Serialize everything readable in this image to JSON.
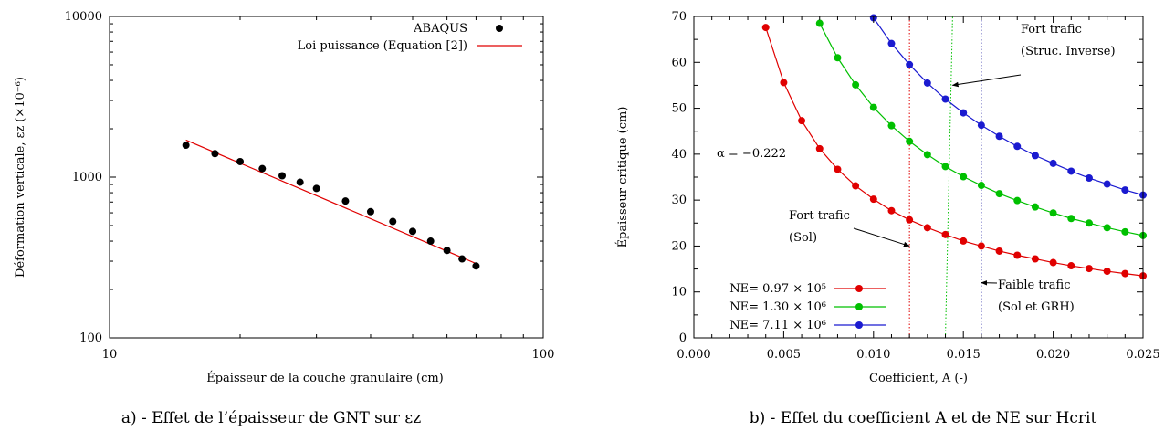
{
  "chart_data": [
    {
      "id": "a",
      "type": "scatter",
      "caption": "a) - Effet de l’épaisseur de GNT sur εz",
      "xlabel": "Épaisseur de la couche granulaire (cm)",
      "ylabel": "Déformation verticale, εz (×10⁻⁶)",
      "xscale": "log",
      "yscale": "log",
      "xlim": [
        10,
        100
      ],
      "ylim": [
        100,
        10000
      ],
      "xticks": [
        "10",
        "100"
      ],
      "yticks": [
        "100",
        "1000",
        "10000"
      ],
      "grid": false,
      "legend_position": "top-right",
      "series": [
        {
          "name": "ABAQUS",
          "kind": "points",
          "color": "#000000",
          "x": [
            15,
            17.5,
            20,
            22.5,
            25,
            27.5,
            30,
            35,
            40,
            45,
            50,
            55,
            60,
            65,
            70
          ],
          "y": [
            1580,
            1400,
            1250,
            1130,
            1020,
            930,
            850,
            710,
            610,
            530,
            460,
            400,
            350,
            310,
            280
          ]
        },
        {
          "name": "Loi puissance (Equation [2])",
          "kind": "line",
          "color": "#e00000",
          "x": [
            15,
            70
          ],
          "y": [
            1700,
            290
          ]
        }
      ]
    },
    {
      "id": "b",
      "type": "line",
      "caption": "b) - Effet du coefficient A et de NE sur Hcrit",
      "xlabel": "Coefficient, A (-)",
      "ylabel": "Épaisseur critique (cm)",
      "xlim": [
        0.0,
        0.025
      ],
      "ylim": [
        0,
        70
      ],
      "xticks": [
        "0.000",
        "0.005",
        "0.010",
        "0.015",
        "0.020",
        "0.025"
      ],
      "yticks": [
        "0",
        "10",
        "20",
        "30",
        "40",
        "50",
        "60",
        "70"
      ],
      "grid": false,
      "legend_position": "bottom-left",
      "annotation_alpha": "α = −0.222",
      "annotations": [
        {
          "lines": [
            "Fort trafic",
            "(Struc. Inverse)"
          ],
          "arrow_to": [
            0.0144,
            55
          ]
        },
        {
          "lines": [
            "Fort trafic",
            "(Sol)"
          ],
          "arrow_to": [
            0.012,
            20
          ]
        },
        {
          "lines": [
            "Faible trafic",
            "(Sol et GRH)"
          ],
          "arrow_to": [
            0.016,
            12
          ]
        }
      ],
      "vlines": [
        {
          "color": "#e00000",
          "x": [
            0.012,
            0.012
          ],
          "y": [
            0,
            70
          ]
        },
        {
          "color": "#00c000",
          "x": [
            0.014,
            0.0144
          ],
          "y": [
            0,
            70
          ]
        },
        {
          "color": "#1a1aa0",
          "x": [
            0.016,
            0.016
          ],
          "y": [
            0,
            70
          ]
        }
      ],
      "series": [
        {
          "name": "NE= 0.97 × 10⁵",
          "color": "#e00000",
          "x": [
            0.004,
            0.005,
            0.006,
            0.007,
            0.008,
            0.009,
            0.01,
            0.011,
            0.012,
            0.013,
            0.014,
            0.015,
            0.016,
            0.017,
            0.018,
            0.019,
            0.02,
            0.021,
            0.022,
            0.023,
            0.024,
            0.025
          ],
          "y": [
            67.6,
            55.6,
            47.3,
            41.2,
            36.7,
            33.1,
            30.2,
            27.7,
            25.7,
            24.0,
            22.5,
            21.1,
            20.0,
            18.9,
            18.0,
            17.2,
            16.4,
            15.7,
            15.1,
            14.5,
            14.0,
            13.5
          ]
        },
        {
          "name": "NE= 1.30 × 10⁶",
          "color": "#00c000",
          "x": [
            0.007,
            0.008,
            0.009,
            0.01,
            0.011,
            0.012,
            0.013,
            0.014,
            0.015,
            0.016,
            0.017,
            0.018,
            0.019,
            0.02,
            0.021,
            0.022,
            0.023,
            0.024,
            0.025
          ],
          "y": [
            68.5,
            61.0,
            55.1,
            50.2,
            46.2,
            42.8,
            39.9,
            37.3,
            35.1,
            33.2,
            31.4,
            29.9,
            28.5,
            27.2,
            26.0,
            25.0,
            24.0,
            23.1,
            22.3
          ]
        },
        {
          "name": "NE= 7.11 × 10⁶",
          "color": "#1a1ad0",
          "x": [
            0.01,
            0.011,
            0.012,
            0.013,
            0.014,
            0.015,
            0.016,
            0.017,
            0.018,
            0.019,
            0.02,
            0.021,
            0.022,
            0.023,
            0.024,
            0.025
          ],
          "y": [
            69.7,
            64.1,
            59.5,
            55.5,
            52.0,
            49.0,
            46.3,
            43.9,
            41.7,
            39.7,
            38.0,
            36.3,
            34.8,
            33.5,
            32.2,
            31.1
          ]
        }
      ]
    }
  ]
}
